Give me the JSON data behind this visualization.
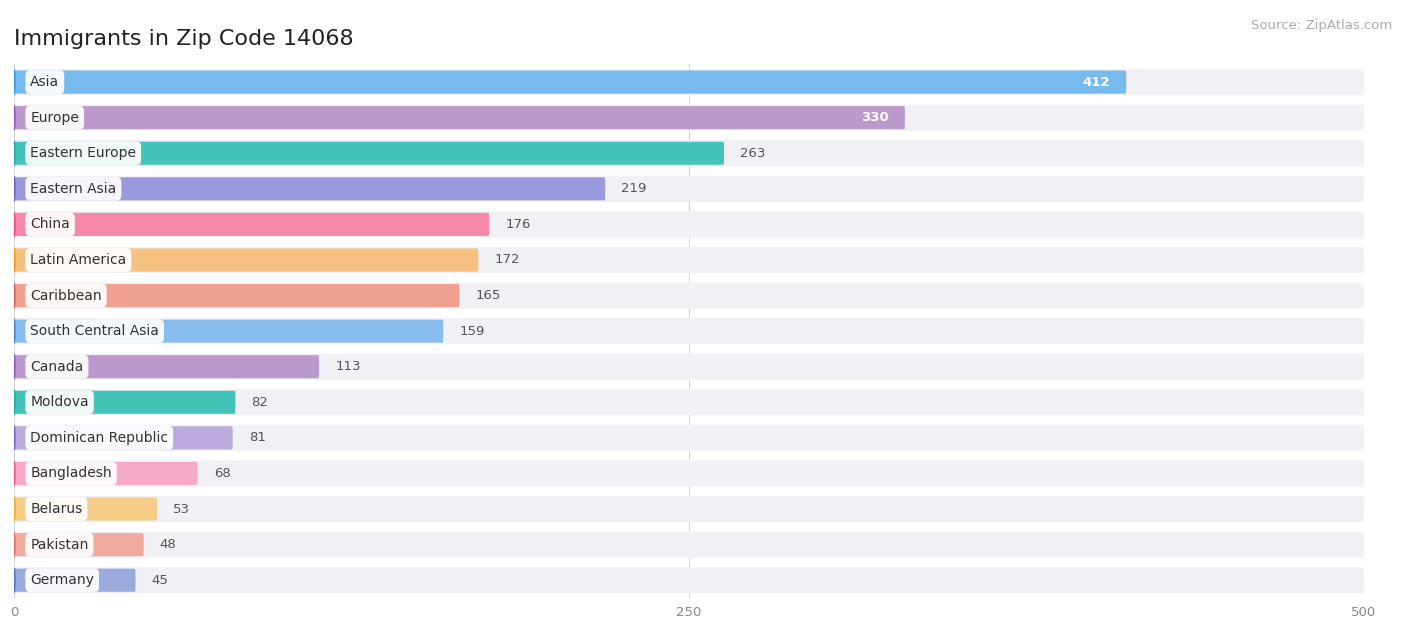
{
  "title": "Immigrants in Zip Code 14068",
  "source_text": "Source: ZipAtlas.com",
  "categories": [
    "Asia",
    "Europe",
    "Eastern Europe",
    "Eastern Asia",
    "China",
    "Latin America",
    "Caribbean",
    "South Central Asia",
    "Canada",
    "Moldova",
    "Dominican Republic",
    "Bangladesh",
    "Belarus",
    "Pakistan",
    "Germany"
  ],
  "values": [
    412,
    330,
    263,
    219,
    176,
    172,
    165,
    159,
    113,
    82,
    81,
    68,
    53,
    48,
    45
  ],
  "bar_colors": [
    "#77bbee",
    "#bb99cc",
    "#44c4b8",
    "#9999dd",
    "#f588a8",
    "#f5c080",
    "#f0a090",
    "#88bbee",
    "#bb99cc",
    "#44c4b8",
    "#bbaadd",
    "#f5a8c8",
    "#f5cc88",
    "#f0aaa0",
    "#99aadd"
  ],
  "dot_colors": [
    "#3399dd",
    "#9955bb",
    "#22aaaa",
    "#6666bb",
    "#ee4488",
    "#ee9922",
    "#cc6655",
    "#4488cc",
    "#9955bb",
    "#22aaaa",
    "#7766bb",
    "#ee5599",
    "#eeaa33",
    "#dd7766",
    "#5577bb"
  ],
  "xlim": [
    0,
    500
  ],
  "xticks": [
    0,
    250,
    500
  ],
  "background_color": "#ffffff",
  "row_bg_color": "#f0f0f5",
  "title_fontsize": 16,
  "label_fontsize": 10,
  "value_fontsize": 9.5,
  "source_fontsize": 9.5,
  "value_inside_threshold": 300
}
